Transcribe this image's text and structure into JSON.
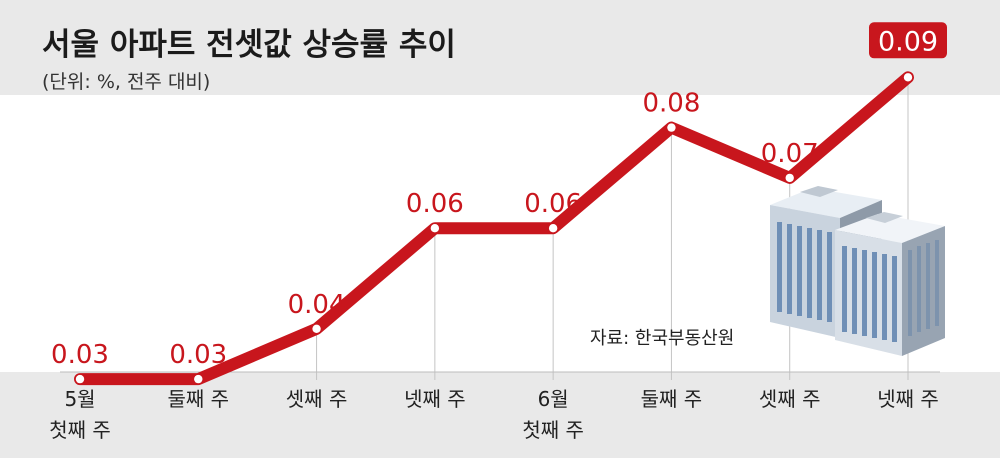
{
  "chart_data": {
    "type": "line",
    "title": "서울 아파트 전셋값 상승률 추이",
    "subtitle": "(단위: %, 전주 대비)",
    "categories": [
      [
        "5월",
        "첫째 주"
      ],
      [
        "둘째 주"
      ],
      [
        "셋째 주"
      ],
      [
        "넷째 주"
      ],
      [
        "6월",
        "첫째 주"
      ],
      [
        "둘째 주"
      ],
      [
        "셋째 주"
      ],
      [
        "넷째 주"
      ]
    ],
    "values": [
      0.03,
      0.03,
      0.04,
      0.06,
      0.06,
      0.08,
      0.07,
      0.09
    ],
    "data_labels": [
      "0.03",
      "0.03",
      "0.04",
      "0.06",
      "0.06",
      "0.08",
      "0.07",
      "0.09"
    ],
    "ylim": [
      0.0,
      0.1
    ],
    "grid": false,
    "source": "자료: 한국부동산원",
    "colors": {
      "line": "#c8161d",
      "highlight_badge": "#c8161d",
      "background": "#e9e9e9",
      "plot_area": "#ffffff"
    }
  }
}
